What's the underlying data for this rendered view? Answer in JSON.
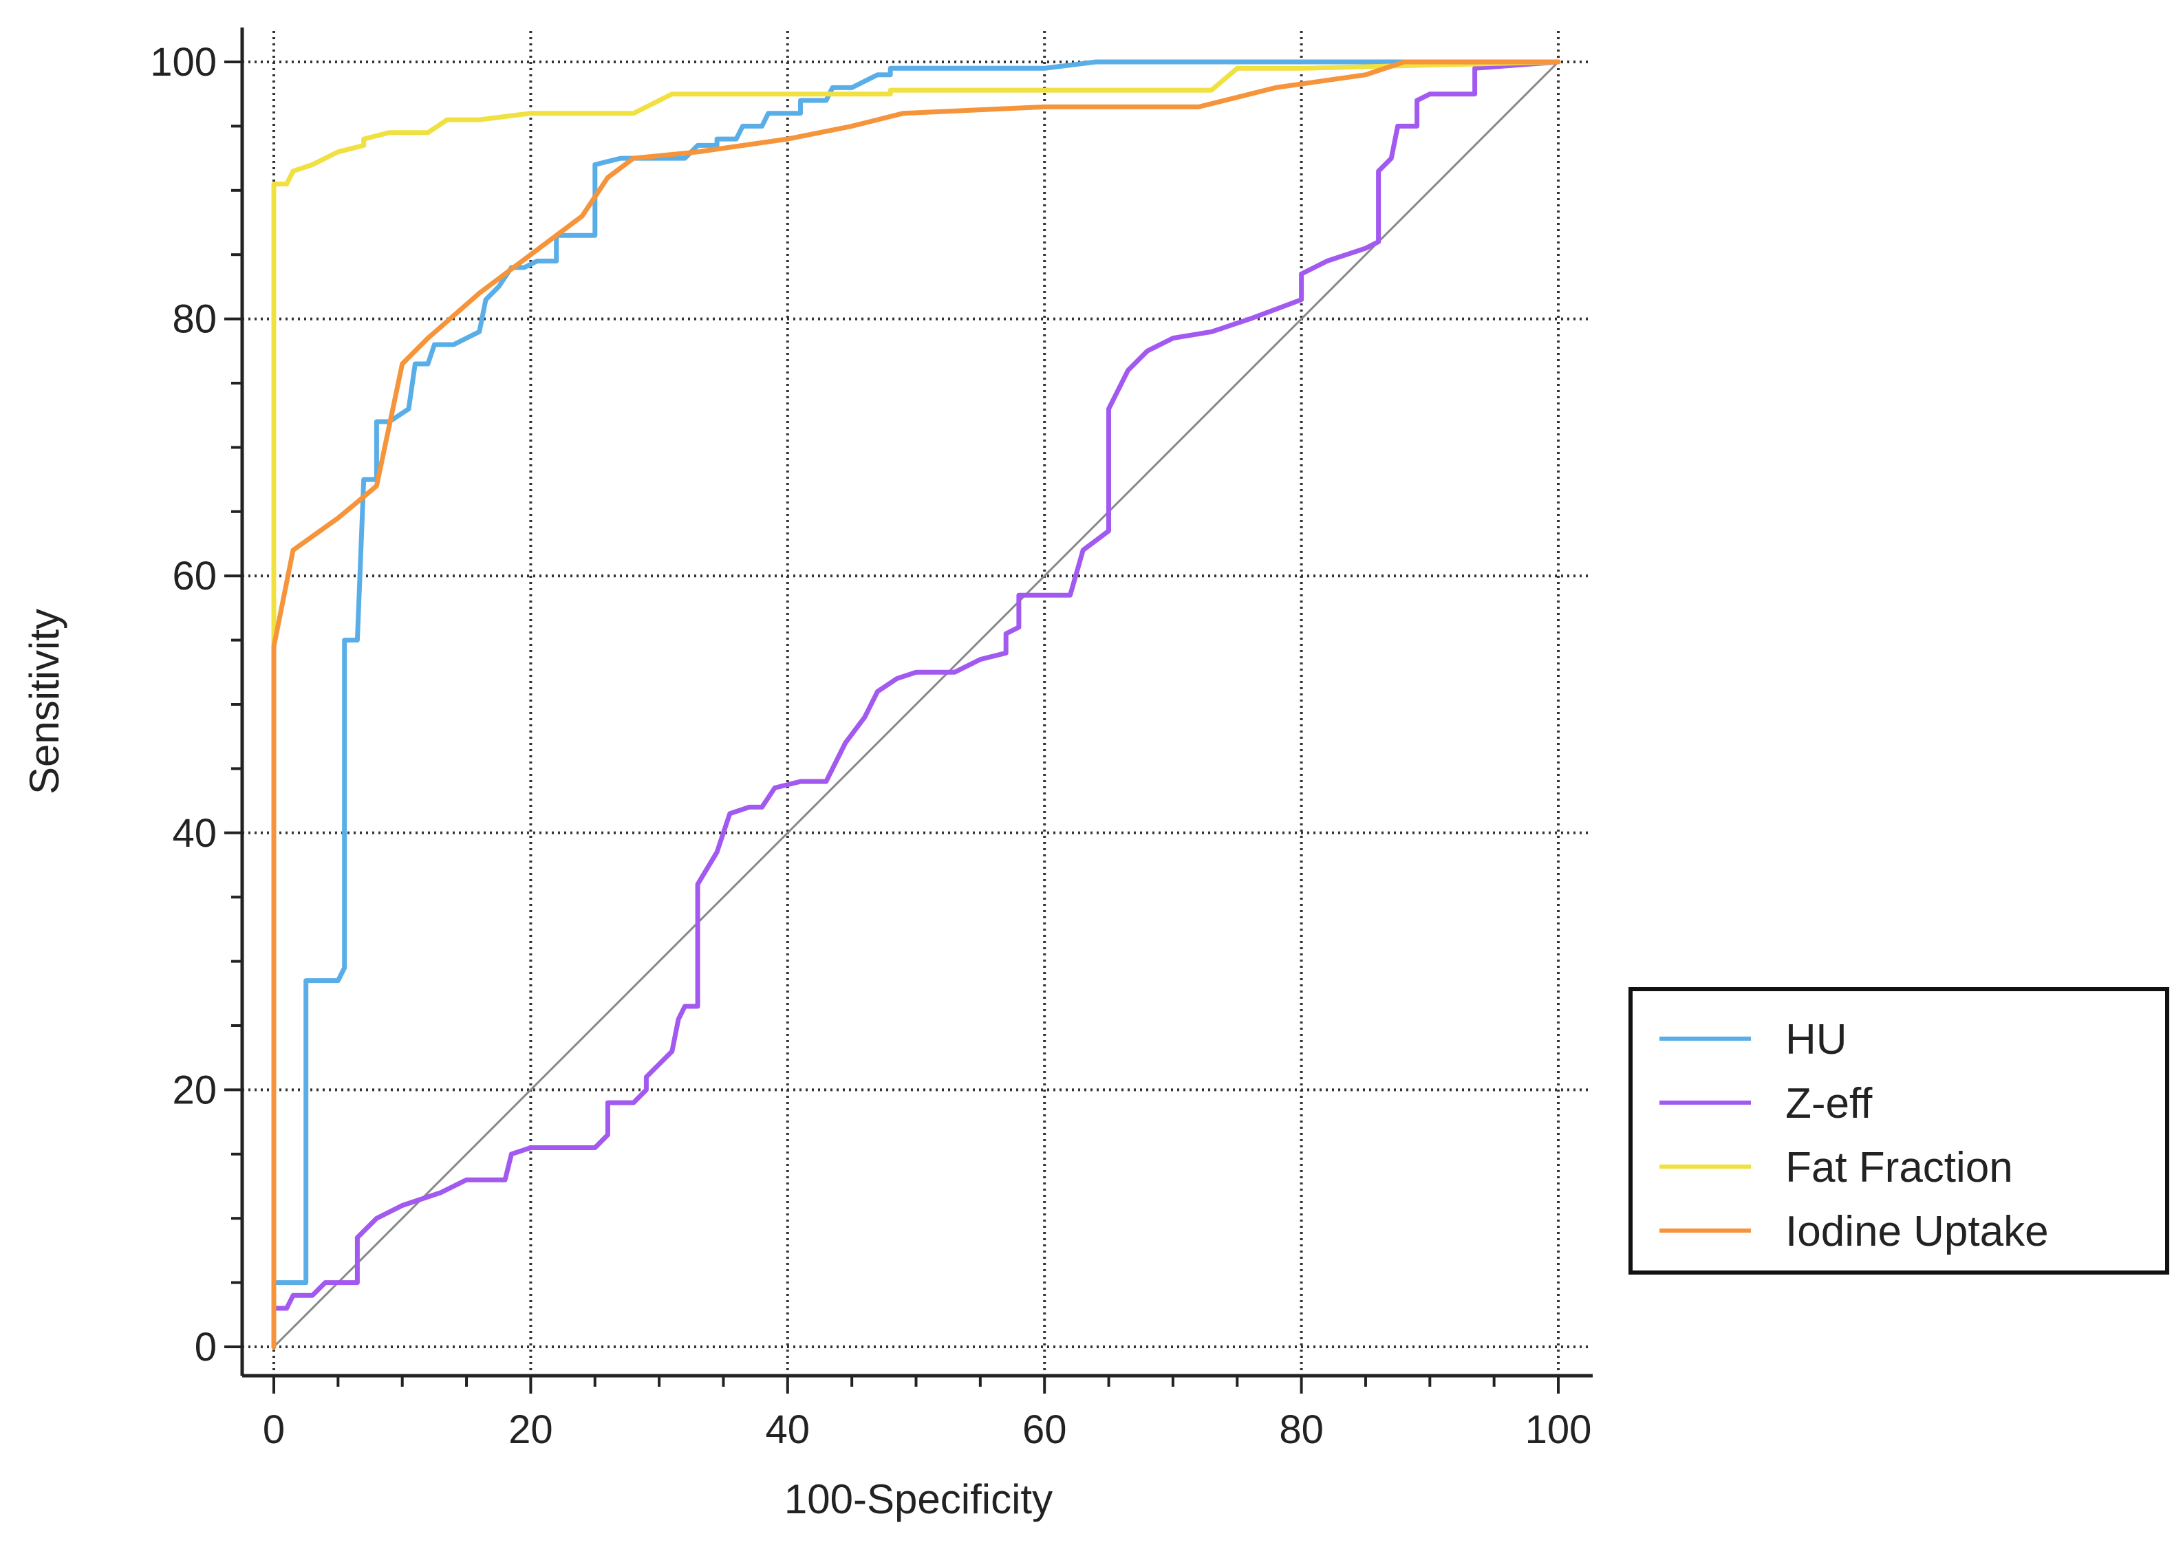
{
  "chart_data": {
    "type": "line",
    "title": "",
    "xlabel": "100-Specificity",
    "ylabel": "Sensitivity",
    "xlim": [
      0,
      100
    ],
    "ylim": [
      0,
      100
    ],
    "x_ticks": [
      "0",
      "20",
      "40",
      "60",
      "80",
      "100"
    ],
    "y_ticks": [
      "0",
      "20",
      "40",
      "60",
      "80",
      "100"
    ],
    "grid": true,
    "grid_style": "dotted",
    "legend_position": "right",
    "reference_line": {
      "x": [
        0,
        100
      ],
      "y": [
        0,
        100
      ],
      "color": "#888888"
    },
    "series": [
      {
        "name": "HU",
        "color": "#5aaee8",
        "points": [
          [
            0,
            0
          ],
          [
            0,
            5
          ],
          [
            2.5,
            5
          ],
          [
            2.5,
            28.5
          ],
          [
            5,
            28.5
          ],
          [
            5.5,
            29.5
          ],
          [
            5.5,
            55
          ],
          [
            6.5,
            55
          ],
          [
            7,
            67.5
          ],
          [
            8,
            67.5
          ],
          [
            8,
            72
          ],
          [
            9,
            72
          ],
          [
            10.5,
            73
          ],
          [
            11,
            76.5
          ],
          [
            12,
            76.5
          ],
          [
            12.5,
            78
          ],
          [
            14,
            78
          ],
          [
            15,
            78.5
          ],
          [
            16,
            79
          ],
          [
            16.5,
            81.5
          ],
          [
            17.5,
            82.5
          ],
          [
            18.5,
            84
          ],
          [
            19.5,
            84
          ],
          [
            20.5,
            84.5
          ],
          [
            22,
            84.5
          ],
          [
            22,
            86.5
          ],
          [
            25,
            86.5
          ],
          [
            25,
            92
          ],
          [
            27,
            92.5
          ],
          [
            32,
            92.5
          ],
          [
            33,
            93.5
          ],
          [
            34.5,
            93.5
          ],
          [
            34.5,
            94
          ],
          [
            36,
            94
          ],
          [
            36.5,
            95
          ],
          [
            38,
            95
          ],
          [
            38.5,
            96
          ],
          [
            41,
            96
          ],
          [
            41,
            97
          ],
          [
            43,
            97
          ],
          [
            43.5,
            98
          ],
          [
            45,
            98
          ],
          [
            47,
            99
          ],
          [
            48,
            99
          ],
          [
            48,
            99.5
          ],
          [
            60,
            99.5
          ],
          [
            64,
            100
          ],
          [
            100,
            100
          ]
        ]
      },
      {
        "name": "Z-eff",
        "color": "#a259f0",
        "points": [
          [
            0,
            0
          ],
          [
            0,
            3
          ],
          [
            1,
            3
          ],
          [
            1.5,
            4
          ],
          [
            3,
            4
          ],
          [
            4,
            5
          ],
          [
            6.5,
            5
          ],
          [
            6.5,
            8.5
          ],
          [
            8,
            10
          ],
          [
            10,
            11
          ],
          [
            13,
            12
          ],
          [
            15,
            13
          ],
          [
            18,
            13
          ],
          [
            18.5,
            15
          ],
          [
            20,
            15.5
          ],
          [
            25,
            15.5
          ],
          [
            26,
            16.5
          ],
          [
            26,
            19
          ],
          [
            28,
            19
          ],
          [
            29,
            20
          ],
          [
            29,
            21
          ],
          [
            31,
            23
          ],
          [
            31.5,
            25.5
          ],
          [
            32,
            26.5
          ],
          [
            33,
            26.5
          ],
          [
            33,
            36
          ],
          [
            34.5,
            38.5
          ],
          [
            35.5,
            41.5
          ],
          [
            37,
            42
          ],
          [
            38,
            42
          ],
          [
            39,
            43.5
          ],
          [
            41,
            44
          ],
          [
            43,
            44
          ],
          [
            44.5,
            47
          ],
          [
            46,
            49
          ],
          [
            47,
            51
          ],
          [
            48.5,
            52
          ],
          [
            50,
            52.5
          ],
          [
            53,
            52.5
          ],
          [
            55,
            53.5
          ],
          [
            57,
            54
          ],
          [
            57,
            55.5
          ],
          [
            58,
            56
          ],
          [
            58,
            58.5
          ],
          [
            60,
            58.5
          ],
          [
            62,
            58.5
          ],
          [
            63,
            62
          ],
          [
            65,
            63.5
          ],
          [
            65,
            73
          ],
          [
            66.5,
            76
          ],
          [
            68,
            77.5
          ],
          [
            70,
            78.5
          ],
          [
            73,
            79
          ],
          [
            76,
            80
          ],
          [
            80,
            81.5
          ],
          [
            80,
            83.5
          ],
          [
            82,
            84.5
          ],
          [
            85,
            85.5
          ],
          [
            86,
            86
          ],
          [
            86,
            91.5
          ],
          [
            87,
            92.5
          ],
          [
            87.5,
            95
          ],
          [
            89,
            95
          ],
          [
            89,
            97
          ],
          [
            90,
            97.5
          ],
          [
            93.5,
            97.5
          ],
          [
            93.5,
            99.5
          ],
          [
            100,
            100
          ]
        ]
      },
      {
        "name": "Fat Fraction",
        "color": "#f0e040",
        "points": [
          [
            0,
            0
          ],
          [
            0,
            90.5
          ],
          [
            1,
            90.5
          ],
          [
            1.5,
            91.5
          ],
          [
            3,
            92
          ],
          [
            5,
            93
          ],
          [
            7,
            93.5
          ],
          [
            7,
            94
          ],
          [
            9,
            94.5
          ],
          [
            12,
            94.5
          ],
          [
            13.5,
            95.5
          ],
          [
            16,
            95.5
          ],
          [
            20,
            96
          ],
          [
            24,
            96
          ],
          [
            28,
            96
          ],
          [
            31,
            97.5
          ],
          [
            35,
            97.5
          ],
          [
            48,
            97.5
          ],
          [
            48,
            97.8
          ],
          [
            73,
            97.8
          ],
          [
            75,
            99.5
          ],
          [
            80,
            99.5
          ],
          [
            100,
            100
          ]
        ]
      },
      {
        "name": "Iodine Uptake",
        "color": "#f5943a",
        "points": [
          [
            0,
            0
          ],
          [
            0,
            54.5
          ],
          [
            1.5,
            62
          ],
          [
            5,
            64.5
          ],
          [
            8,
            67
          ],
          [
            10,
            76.5
          ],
          [
            12,
            78.5
          ],
          [
            16,
            82
          ],
          [
            20,
            85
          ],
          [
            24,
            88
          ],
          [
            26,
            91
          ],
          [
            28,
            92.5
          ],
          [
            33,
            93
          ],
          [
            40,
            94
          ],
          [
            45,
            95
          ],
          [
            49,
            96
          ],
          [
            60,
            96.5
          ],
          [
            72,
            96.5
          ],
          [
            78,
            98
          ],
          [
            85,
            99
          ],
          [
            88,
            100
          ],
          [
            100,
            100
          ]
        ]
      }
    ]
  }
}
